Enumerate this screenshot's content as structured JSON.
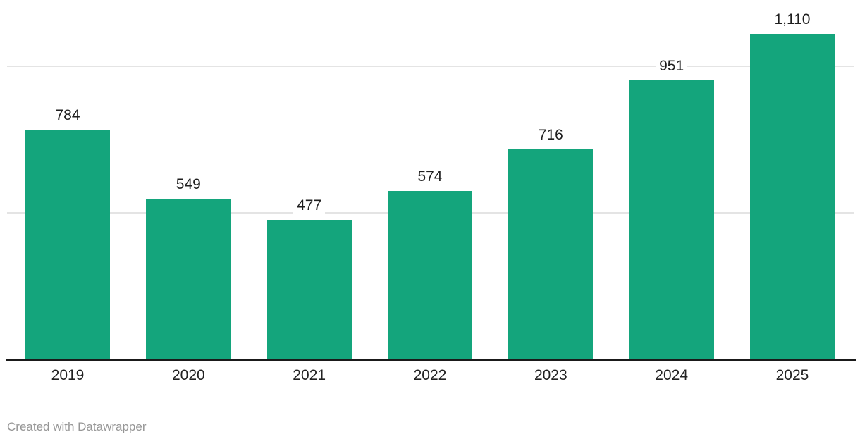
{
  "chart_data": {
    "type": "bar",
    "categories": [
      "2019",
      "2020",
      "2021",
      "2022",
      "2023",
      "2024",
      "2025"
    ],
    "values": [
      784,
      549,
      477,
      574,
      716,
      951,
      1110
    ],
    "value_labels": [
      "784",
      "549",
      "477",
      "574",
      "716",
      "951",
      "1,110"
    ],
    "title": "",
    "xlabel": "",
    "ylabel": "",
    "ylim": [
      0,
      1226
    ],
    "gridline_values": [
      500,
      1000
    ],
    "grid": "horizontal",
    "legend": "none",
    "bar_color": "#14a57c"
  },
  "colors": {
    "bar": "#14a57c",
    "gridline": "#e4e4e4",
    "baseline": "#1a1a1a",
    "value_label": "#1f1f1f",
    "axis_label": "#222222",
    "attribution": "#969696"
  },
  "footer": {
    "attribution": "Created with Datawrapper"
  }
}
